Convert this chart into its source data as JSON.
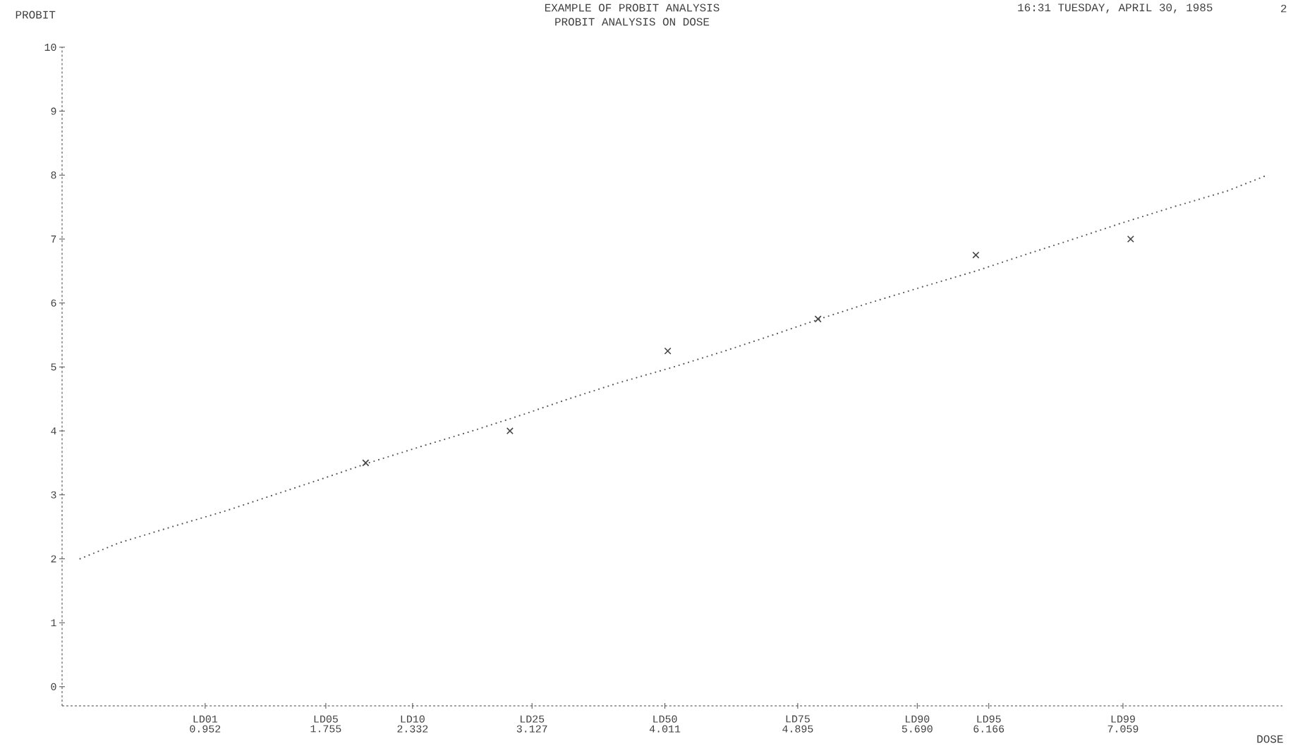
{
  "chart_data": {
    "type": "line",
    "title": "EXAMPLE OF PROBIT ANALYSIS",
    "subtitle": "PROBIT ANALYSIS ON DOSE",
    "xlabel": "DOSE",
    "ylabel": "PROBIT",
    "annotations": [
      "16:31 TUESDAY, APRIL 30, 1985",
      "2",
      "LD01",
      "LD05",
      "LD10",
      "LD25",
      "LD50",
      "LD75",
      "LD90",
      "LD95",
      "LD99"
    ],
    "xlim": [
      0,
      8.12
    ],
    "ylim": [
      -0.3,
      10
    ],
    "xticks": [
      0.952,
      1.755,
      2.332,
      3.127,
      4.011,
      4.895,
      {
        "value": 5.69,
        "label": "5.690"
      },
      6.166,
      7.059
    ],
    "yticks": [
      0,
      1,
      2,
      3,
      4,
      5,
      6,
      7,
      8,
      9,
      10
    ],
    "series": [
      {
        "color": "#555555",
        "line_style": "dotted",
        "marker": "none",
        "x": [
          0.12,
          0.38,
          0.73,
          1.09,
          1.41,
          1.73,
          2.04,
          2.38,
          2.73,
          3.06,
          3.37,
          3.7,
          4.07,
          4.41,
          4.73,
          5.04,
          5.37,
          5.72,
          6.08,
          6.4,
          6.73,
          7.05,
          7.39,
          7.75,
          8.02
        ],
        "values": [
          2.0,
          2.25,
          2.5,
          2.75,
          3.0,
          3.25,
          3.5,
          3.75,
          4.0,
          4.25,
          4.5,
          4.75,
          5.0,
          5.25,
          5.5,
          5.75,
          6.0,
          6.25,
          6.5,
          6.75,
          7.0,
          7.25,
          7.5,
          7.75,
          8.0
        ]
      },
      {
        "type": "scatter",
        "color": "#444444",
        "marker": "cross",
        "x": [
          2.02,
          2.98,
          4.03,
          5.03,
          6.08,
          7.11
        ],
        "values": [
          3.5,
          4.0,
          5.25,
          5.75,
          6.75,
          7.0
        ]
      }
    ]
  }
}
